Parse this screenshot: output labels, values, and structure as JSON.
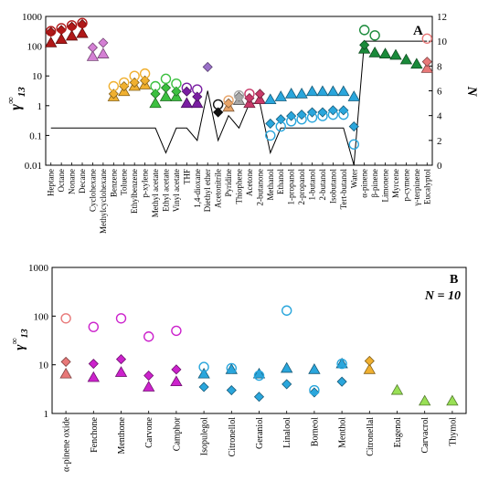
{
  "chart_data": [
    {
      "panel": "A",
      "type": "scatter",
      "ylabel": "γ∞13",
      "y2label": "N",
      "yscale": "log",
      "ylim": [
        0.01,
        1000
      ],
      "y2lim": [
        0,
        12
      ],
      "yticks": [
        [
          "0.01",
          "0.01"
        ],
        [
          "0.1",
          "0.1"
        ],
        [
          "1",
          "1"
        ],
        [
          "10",
          "10"
        ],
        [
          "100",
          "100"
        ],
        [
          "1000",
          "1000"
        ]
      ],
      "y2ticks": [
        "0",
        "2",
        "4",
        "6",
        "8",
        "10",
        "12"
      ],
      "categories": [
        "Heptane",
        "Octane",
        "Nonane",
        "Decane",
        "Cyclohexane",
        "Methylcyclohexane",
        "Benzene",
        "Toluene",
        "Ethylbenzene",
        "p-xylene",
        "Methyl acetate",
        "Ethyl acetate",
        "Vinyl acetate",
        "THF",
        "1,4-dioxane",
        "Diethyl ether",
        "Acetonitrile",
        "Pyridine",
        "Thiophene",
        "Acetone",
        "2-butanone",
        "Methanol",
        "Ethanol",
        "1-propanol",
        "2-propanol",
        "1-butanol",
        "2-butanol",
        "Isobutanol",
        "Tert-butanol",
        "Water",
        "α-pinene",
        "β-pinene",
        "Limonene",
        "Myrcene",
        "p-cymene",
        "γ-terpinene",
        "Eucalyptol"
      ],
      "colors": [
        "#b01818",
        "#b01818",
        "#b01818",
        "#b01818",
        "#d480d4",
        "#d480d4",
        "#f0b030",
        "#f0b030",
        "#f0b030",
        "#f0b030",
        "#3cc040",
        "#3cc040",
        "#3cc040",
        "#7a1fa2",
        "#7a1fa2",
        "#9a70c8",
        "#111111",
        "#e8a468",
        "#a8a8a8",
        "#c83a6a",
        "#c83a6a",
        "#2aa6dc",
        "#2aa6dc",
        "#2aa6dc",
        "#2aa6dc",
        "#2aa6dc",
        "#2aa6dc",
        "#2aa6dc",
        "#2aa6dc",
        "#2aa6dc",
        "#1a8a3a",
        "#1a8a3a",
        "#1a8a3a",
        "#1a8a3a",
        "#1a8a3a",
        "#1a8a3a",
        "#e87878"
      ],
      "series": [
        {
          "marker": "triangle-filled",
          "values": [
            130,
            170,
            220,
            270,
            45,
            55,
            2.0,
            3.0,
            4.5,
            5.0,
            1.2,
            2.0,
            2.0,
            1.2,
            1.2,
            null,
            null,
            0.9,
            1.5,
            1.2,
            1.6,
            1.6,
            2.0,
            2.5,
            2.5,
            3.0,
            3.0,
            3.0,
            3.0,
            2.0,
            80,
            60,
            55,
            50,
            35,
            25,
            18
          ]
        },
        {
          "marker": "diamond-filled",
          "values": [
            300,
            350,
            450,
            550,
            90,
            130,
            2.5,
            4.5,
            6.0,
            7.0,
            2.5,
            4.0,
            3.0,
            3.0,
            2.0,
            20,
            0.6,
            1.2,
            2.0,
            1.8,
            2.5,
            0.25,
            0.35,
            0.45,
            0.5,
            0.6,
            0.6,
            0.7,
            0.7,
            0.2,
            110,
            null,
            null,
            null,
            null,
            null,
            30
          ]
        },
        {
          "marker": "circle-open",
          "values": [
            320,
            400,
            500,
            600,
            null,
            null,
            4.5,
            6.0,
            10,
            12,
            4.5,
            8.0,
            5.5,
            4.0,
            3.5,
            null,
            1.1,
            1.5,
            2.2,
            2.5,
            null,
            0.1,
            0.2,
            0.3,
            0.35,
            0.4,
            0.45,
            0.5,
            0.5,
            0.05,
            350,
            230,
            null,
            null,
            null,
            null,
            180
          ]
        }
      ],
      "N": [
        3,
        3,
        3,
        3,
        3,
        3,
        3,
        3,
        3,
        3,
        3,
        1,
        3,
        3,
        2,
        6,
        2,
        4,
        3,
        5,
        5,
        1,
        3,
        3,
        3,
        3,
        3,
        3,
        3,
        0,
        10,
        10,
        10,
        10,
        10,
        10,
        10
      ]
    },
    {
      "panel": "B",
      "type": "scatter",
      "ylabel": "γ∞13",
      "annotation": "N = 10",
      "yscale": "log",
      "ylim": [
        1,
        1000
      ],
      "yticks": [
        [
          "1",
          "1"
        ],
        [
          "10",
          "10"
        ],
        [
          "100",
          "100"
        ],
        [
          "1000",
          "1000"
        ]
      ],
      "categories": [
        "α-pinene oxide",
        "Fenchone",
        "Menthone",
        "Carvone",
        "Camphor",
        "Isopulegol",
        "Citronellol",
        "Geraniol",
        "Linalool",
        "Borneol",
        "Menthol",
        "Citronellal",
        "Eugenol",
        "Carvacrol",
        "Thymol"
      ],
      "colors": [
        "#e87878",
        "#cc22cc",
        "#cc22cc",
        "#cc22cc",
        "#cc22cc",
        "#2aa6dc",
        "#2aa6dc",
        "#2aa6dc",
        "#2aa6dc",
        "#2aa6dc",
        "#2aa6dc",
        "#f0b030",
        "#99e055",
        "#99e055",
        "#99e055"
      ],
      "series": [
        {
          "marker": "triangle-filled",
          "values": [
            6.5,
            5.5,
            7.0,
            3.5,
            4.5,
            6.5,
            8.0,
            6.5,
            8.5,
            8.0,
            10.5,
            8.0,
            3.0,
            1.8,
            1.8
          ]
        },
        {
          "marker": "diamond-filled",
          "values": [
            11.5,
            10.5,
            13.0,
            6.0,
            8.0,
            3.5,
            3.0,
            2.2,
            4.0,
            2.7,
            4.5,
            12.0,
            null,
            null,
            null
          ]
        },
        {
          "marker": "circle-open",
          "values": [
            90,
            60,
            90,
            38,
            50,
            9.0,
            8.5,
            6.0,
            130,
            3.0,
            10.5,
            null,
            null,
            null,
            null
          ]
        }
      ]
    }
  ],
  "panelA": {
    "label": "A",
    "ylabel_main": "γ",
    "ylabel_sup": "∞",
    "ylabel_sub": "13",
    "y2label": "N"
  },
  "panelB": {
    "label": "B",
    "annotation": "N = 10",
    "ylabel_main": "γ",
    "ylabel_sup": "∞",
    "ylabel_sub": "13"
  }
}
